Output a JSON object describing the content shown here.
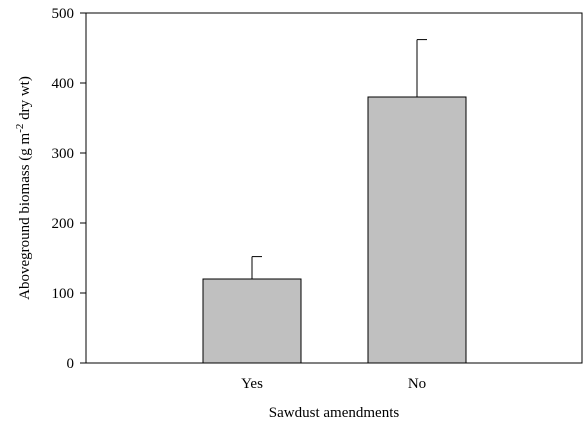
{
  "chart_data": {
    "type": "bar",
    "categories": [
      "Yes",
      "No"
    ],
    "values": [
      120,
      380
    ],
    "errors": [
      32,
      82
    ],
    "xlabel": "Sawdust amendments",
    "ylabel": {
      "before": "Aboveground biomass (g m",
      "sup": "-2",
      "after": " dry wt)"
    },
    "ylim": [
      0,
      500
    ],
    "yticks": [
      "0",
      "100",
      "200",
      "300",
      "400",
      "500"
    ],
    "grid": false,
    "colors": {
      "bar_fill": "#c0c0c0",
      "bar_stroke": "#000000",
      "axis": "#000000"
    }
  }
}
